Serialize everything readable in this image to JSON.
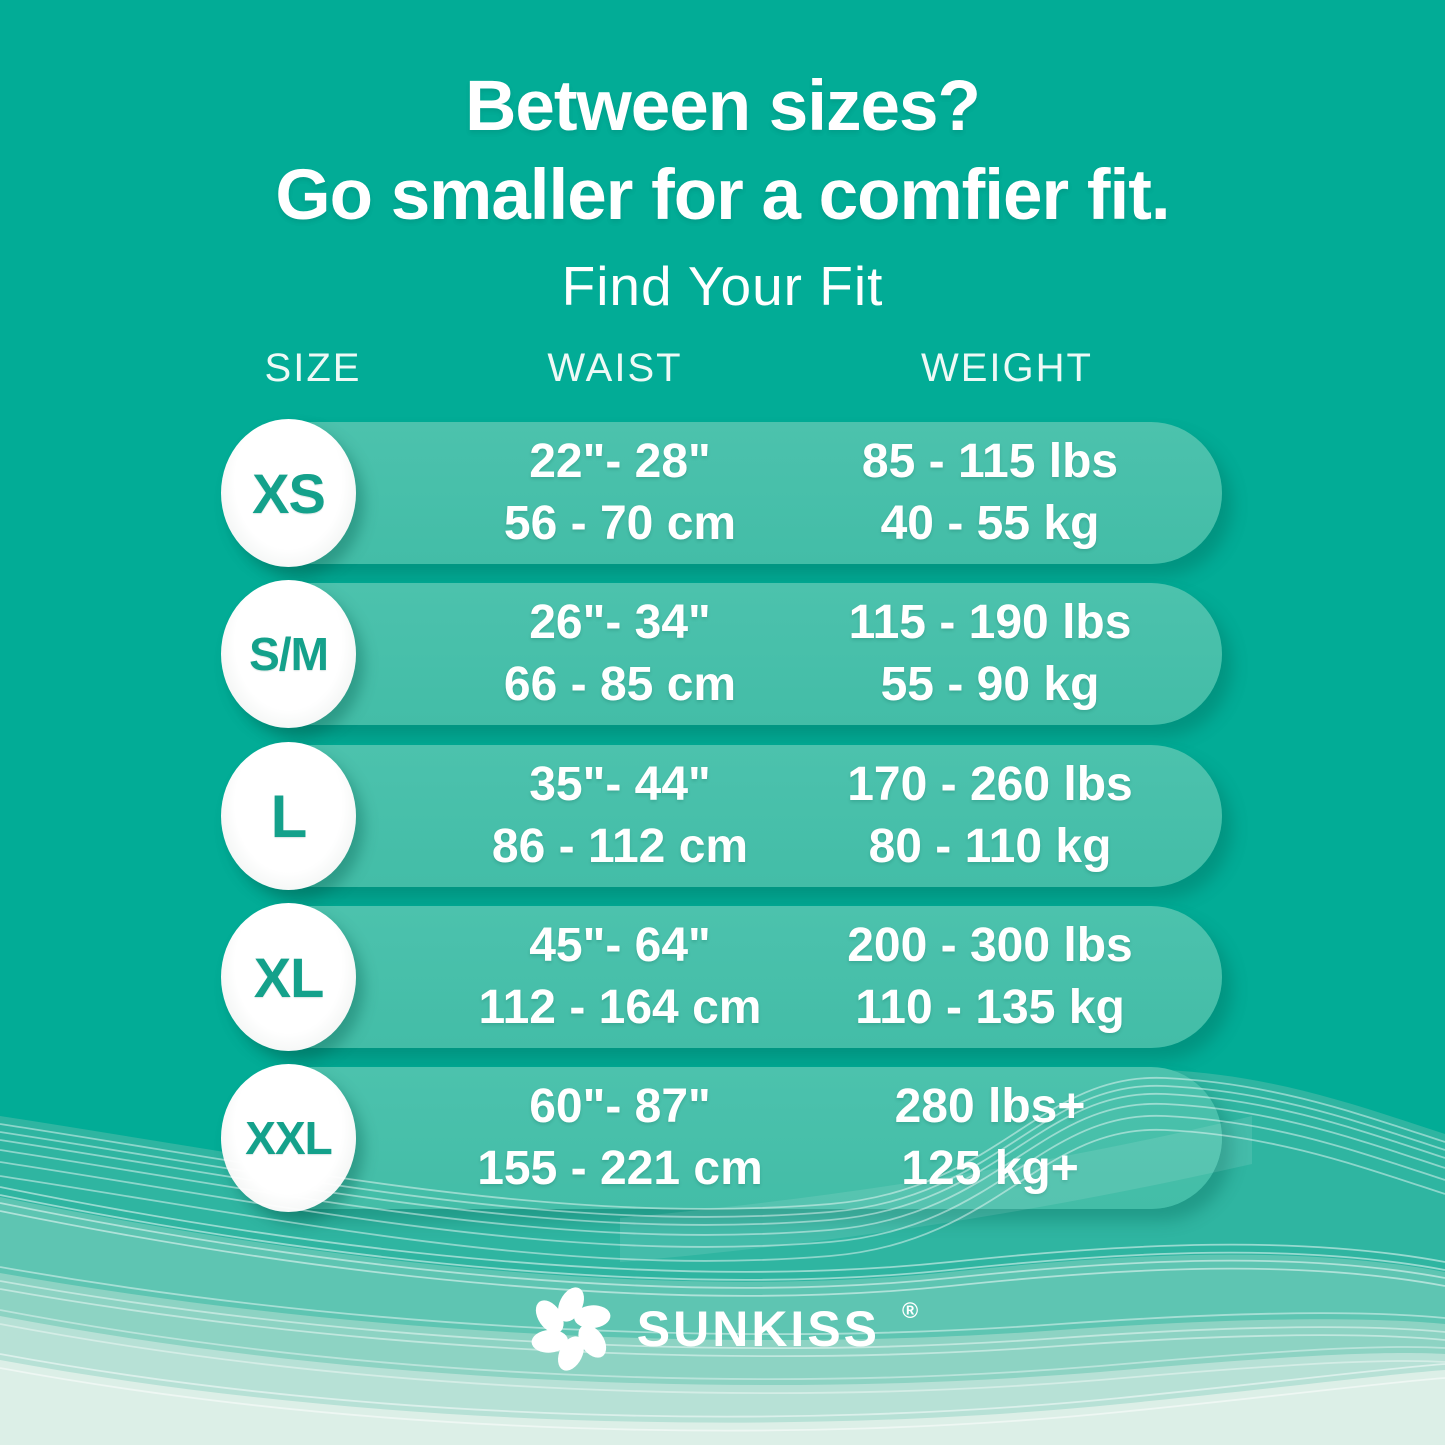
{
  "heading": {
    "line1": "Between sizes?",
    "line2": "Go smaller for a comfier fit."
  },
  "subtitle": "Find Your Fit",
  "table": {
    "headers": {
      "size": "SIZE",
      "waist": "WAIST",
      "weight": "WEIGHT"
    },
    "rows": [
      {
        "size": "XS",
        "waist_in": "22\"- 28\"",
        "waist_cm": "56 - 70 cm",
        "weight_lbs": "85 - 115 lbs",
        "weight_kg": "40 - 55 kg"
      },
      {
        "size": "S/M",
        "waist_in": "26\"- 34\"",
        "waist_cm": "66 - 85 cm",
        "weight_lbs": "115 - 190 lbs",
        "weight_kg": "55 - 90 kg"
      },
      {
        "size": "L",
        "waist_in": "35\"- 44\"",
        "waist_cm": "86 - 112 cm",
        "weight_lbs": "170 - 260 lbs",
        "weight_kg": "80 - 110 kg"
      },
      {
        "size": "XL",
        "waist_in": "45\"- 64\"",
        "waist_cm": "112 - 164 cm",
        "weight_lbs": "200 - 300 lbs",
        "weight_kg": "110 - 135 kg"
      },
      {
        "size": "XXL",
        "waist_in": "60\"- 87\"",
        "waist_cm": "155 - 221 cm",
        "weight_lbs": "280 lbs+",
        "weight_kg": "125 kg+"
      }
    ]
  },
  "brand": {
    "name": "SUNKISS",
    "registered": "®",
    "icon": "flower-icon"
  },
  "colors": {
    "background": "#02AC96",
    "pill": "#47BFAA",
    "size_letter": "#14A18B",
    "text": "#FFFFFF",
    "wave_bands": [
      "#2FB5A1",
      "#5EC5B2",
      "#8DD3C3",
      "#B7E1D6",
      "#DCEFE7"
    ]
  }
}
